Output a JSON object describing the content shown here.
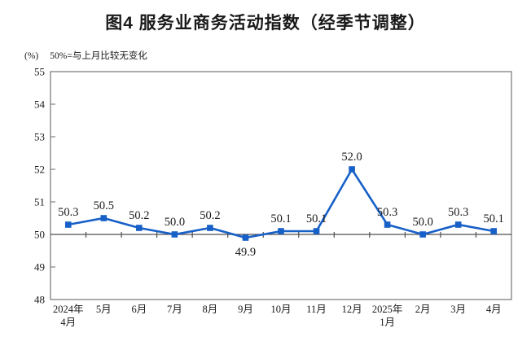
{
  "chart": {
    "title": "图4 服务业商务活动指数（经季节调整）",
    "unit_label": "(%)",
    "reference_note": "50%=与上月比较无变化"
  },
  "chart_data": {
    "type": "line",
    "title": "图4 服务业商务活动指数（经季节调整）",
    "ylabel": "(%)",
    "annotation": "50%=与上月比较无变化",
    "categories": [
      [
        "2024年",
        "4月"
      ],
      [
        "5月"
      ],
      [
        "6月"
      ],
      [
        "7月"
      ],
      [
        "8月"
      ],
      [
        "9月"
      ],
      [
        "10月"
      ],
      [
        "11月"
      ],
      [
        "12月"
      ],
      [
        "2025年",
        "1月"
      ],
      [
        "2月"
      ],
      [
        "3月"
      ],
      [
        "4月"
      ]
    ],
    "series": [
      {
        "name": "服务业商务活动指数",
        "values": [
          50.3,
          50.5,
          50.2,
          50.0,
          50.2,
          49.9,
          50.1,
          50.1,
          52.0,
          50.3,
          50.0,
          50.3,
          50.1
        ]
      }
    ],
    "data_labels": [
      "50.3",
      "50.5",
      "50.2",
      "50.0",
      "50.2",
      "49.9",
      "50.1",
      "50.1",
      "52.0",
      "50.3",
      "50.0",
      "50.3",
      "50.1"
    ],
    "ylim": [
      48,
      55
    ],
    "ytick_step": 1,
    "yticks": [
      48,
      49,
      50,
      51,
      52,
      53,
      54,
      55
    ],
    "reference_value": 50,
    "grid": false,
    "legend": "none",
    "line_color": "#1760c8",
    "marker": "square",
    "axis_color": "#808080",
    "reference_line_color": "#4d4d4d"
  }
}
